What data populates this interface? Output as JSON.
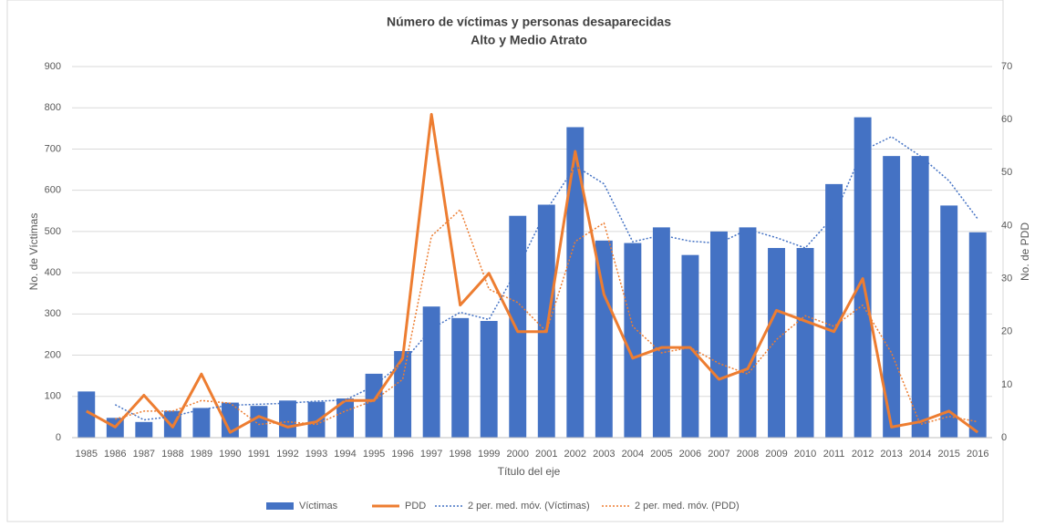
{
  "chart_data": {
    "type": "combo",
    "title": "Número de víctimas y personas desaparecidas",
    "subtitle": "Alto y Medio Atrato",
    "x_label": "Título del eje",
    "y_label": "No. de Víctimas",
    "y2_label": "No. de PDD",
    "categories": [
      "1985",
      "1986",
      "1987",
      "1988",
      "1989",
      "1990",
      "1991",
      "1992",
      "1993",
      "1994",
      "1995",
      "1996",
      "1997",
      "1998",
      "1999",
      "2000",
      "2001",
      "2002",
      "2003",
      "2004",
      "2005",
      "2006",
      "2007",
      "2008",
      "2009",
      "2010",
      "2011",
      "2012",
      "2013",
      "2014",
      "2015",
      "2016"
    ],
    "ylim": [
      0,
      900
    ],
    "yticks": [
      0,
      100,
      200,
      300,
      400,
      500,
      600,
      700,
      800,
      900
    ],
    "y2lim": [
      0,
      70
    ],
    "y2ticks": [
      0,
      10,
      20,
      30,
      40,
      50,
      60,
      70
    ],
    "grid": true,
    "legend": "bottom",
    "series": [
      {
        "name": "Víctimas",
        "type": "bar",
        "color": "#4472c4",
        "values": [
          112,
          48,
          38,
          65,
          72,
          85,
          77,
          90,
          87,
          95,
          155,
          210,
          318,
          290,
          283,
          538,
          565,
          753,
          478,
          472,
          510,
          443,
          500,
          510,
          460,
          460,
          615,
          777,
          683,
          683,
          563,
          498
        ]
      },
      {
        "name": "PDD",
        "type": "line",
        "color": "#ed7d31",
        "axis": "y2",
        "values": [
          5,
          2,
          8,
          2,
          12,
          1,
          4,
          2,
          3,
          7,
          7,
          15,
          61,
          25,
          31,
          20,
          20,
          54,
          27,
          15,
          17,
          17,
          11,
          13,
          24,
          22,
          20,
          30,
          2,
          3,
          5,
          1
        ]
      },
      {
        "name": "2 per. med. móv. (Víctimas)",
        "type": "dotted",
        "color": "#4472c4",
        "values": [
          null,
          80,
          43,
          51.5,
          68.5,
          78.5,
          81,
          83.5,
          88.5,
          91,
          125,
          182.5,
          264,
          304,
          286.5,
          410.5,
          551.5,
          659,
          615.5,
          475,
          491,
          476.5,
          471.5,
          505,
          485,
          460,
          537.5,
          696,
          730,
          683,
          623,
          530.5
        ]
      },
      {
        "name": "2 per. med. móv. (PDD)",
        "type": "dotted",
        "color": "#ed7d31",
        "axis": "y2",
        "values": [
          null,
          3.5,
          5,
          5,
          7,
          6.5,
          2.5,
          3,
          2.5,
          5,
          7,
          11,
          38,
          43,
          28,
          25.5,
          20,
          37,
          40.5,
          21,
          16,
          17,
          14,
          12,
          18.5,
          23,
          21,
          25,
          16,
          2.5,
          4,
          3
        ]
      }
    ]
  }
}
